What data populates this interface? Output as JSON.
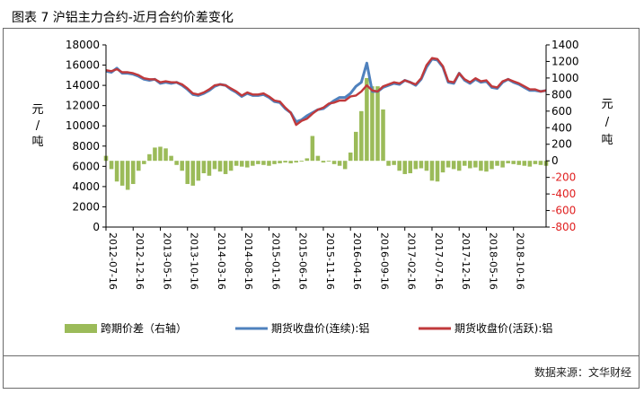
{
  "title": "图表 7 沪铝主力合约-近月合约价差变化",
  "source": "数据来源：文华财经",
  "chart_data": {
    "type": "line",
    "left_axis": {
      "range": [
        0,
        18000
      ],
      "ticks": [
        "0",
        "2000",
        "4000",
        "6000",
        "8000",
        "10000",
        "12000",
        "14000",
        "16000",
        "18000"
      ],
      "unit_label": [
        "元",
        "/",
        "吨"
      ]
    },
    "right_axis": {
      "range": [
        -800,
        1400
      ],
      "ticks": [
        "-800",
        "-600",
        "-400",
        "-200",
        "0",
        "200",
        "400",
        "600",
        "800",
        "1000",
        "1200",
        "1400"
      ],
      "unit_label": [
        "元",
        "/",
        "吨"
      ]
    },
    "x_ticks": [
      "2012-07-16",
      "2012-12-16",
      "2013-05-16",
      "2013-10-16",
      "2014-03-16",
      "2014-08-16",
      "2015-01-16",
      "2015-06-16",
      "2015-11-16",
      "2016-04-16",
      "2016-09-16",
      "2017-02-16",
      "2017-07-16",
      "2017-12-16",
      "2018-05-16",
      "2018-10-16"
    ],
    "x_positions": [
      0,
      5,
      10,
      15,
      20,
      25,
      30,
      35,
      40,
      45,
      50,
      55,
      60,
      65,
      70,
      75
    ],
    "x_range": [
      0,
      81
    ],
    "series": [
      {
        "name": "跨期价差（右轴）",
        "type": "bar",
        "axis": "right",
        "color": "#9bbb59",
        "x": [
          0,
          1,
          2,
          3,
          4,
          5,
          6,
          7,
          8,
          9,
          10,
          11,
          12,
          13,
          14,
          15,
          16,
          17,
          18,
          19,
          20,
          21,
          22,
          23,
          24,
          25,
          26,
          27,
          28,
          29,
          30,
          31,
          32,
          33,
          34,
          35,
          36,
          37,
          38,
          39,
          40,
          41,
          42,
          43,
          44,
          45,
          46,
          47,
          48,
          49,
          50,
          51,
          52,
          53,
          54,
          55,
          56,
          57,
          58,
          59,
          60,
          61,
          62,
          63,
          64,
          65,
          66,
          67,
          68,
          69,
          70,
          71,
          72,
          73,
          74,
          75,
          76,
          77,
          78,
          79,
          80,
          81
        ],
        "values": [
          60,
          -100,
          -250,
          -300,
          -350,
          -280,
          -120,
          -40,
          80,
          160,
          170,
          150,
          60,
          -50,
          -120,
          -280,
          -300,
          -240,
          -150,
          -180,
          -100,
          -130,
          -160,
          -120,
          -60,
          -70,
          -80,
          -60,
          -40,
          -50,
          -60,
          -40,
          -30,
          -20,
          -30,
          -20,
          -10,
          30,
          300,
          60,
          -20,
          -10,
          -40,
          -60,
          -100,
          100,
          350,
          600,
          1000,
          900,
          900,
          620,
          -60,
          -50,
          -120,
          -160,
          -150,
          -100,
          -90,
          -120,
          -240,
          -250,
          -140,
          -80,
          -100,
          -120,
          -60,
          -90,
          -80,
          -120,
          -130,
          -100,
          -60,
          -80,
          -30,
          -40,
          -50,
          -60,
          -70,
          -40,
          -50,
          -60
        ]
      },
      {
        "name": "期货收盘价(连续):铝",
        "type": "line",
        "axis": "left",
        "color": "#4f81bd",
        "x": [
          0,
          1,
          2,
          3,
          4,
          5,
          6,
          7,
          8,
          9,
          10,
          11,
          12,
          13,
          14,
          15,
          16,
          17,
          18,
          19,
          20,
          21,
          22,
          23,
          24,
          25,
          26,
          27,
          28,
          29,
          30,
          31,
          32,
          33,
          34,
          35,
          36,
          37,
          38,
          39,
          40,
          41,
          42,
          43,
          44,
          45,
          46,
          47,
          48,
          49,
          50,
          51,
          52,
          53,
          54,
          55,
          56,
          57,
          58,
          59,
          60,
          61,
          62,
          63,
          64,
          65,
          66,
          67,
          68,
          69,
          70,
          71,
          72,
          73,
          74,
          75,
          76,
          77,
          78,
          79,
          80,
          81
        ],
        "values": [
          15400,
          15300,
          15700,
          15200,
          15200,
          15100,
          14900,
          14600,
          14500,
          14600,
          14200,
          14300,
          14200,
          14300,
          14000,
          13600,
          13100,
          13000,
          13200,
          13500,
          13900,
          14100,
          14000,
          13600,
          13300,
          12900,
          13200,
          13000,
          13000,
          13100,
          12800,
          12400,
          12300,
          11700,
          11300,
          10400,
          10600,
          11000,
          11300,
          11600,
          11700,
          12100,
          12500,
          12800,
          12800,
          13200,
          13900,
          14300,
          16200,
          13400,
          13400,
          13800,
          14000,
          14200,
          14100,
          14500,
          14300,
          14000,
          14600,
          15800,
          16600,
          16500,
          15800,
          14300,
          14200,
          15200,
          14500,
          14200,
          14600,
          14300,
          14400,
          13800,
          13700,
          14300,
          14600,
          14300,
          14100,
          13800,
          13500,
          13500,
          13400,
          13500
        ]
      },
      {
        "name": "期货收盘价(活跃):铝",
        "type": "line",
        "axis": "left",
        "color": "#c0393b",
        "x": [
          0,
          1,
          2,
          3,
          4,
          5,
          6,
          7,
          8,
          9,
          10,
          11,
          12,
          13,
          14,
          15,
          16,
          17,
          18,
          19,
          20,
          21,
          22,
          23,
          24,
          25,
          26,
          27,
          28,
          29,
          30,
          31,
          32,
          33,
          34,
          35,
          36,
          37,
          38,
          39,
          40,
          41,
          42,
          43,
          44,
          45,
          46,
          47,
          48,
          49,
          50,
          51,
          52,
          53,
          54,
          55,
          56,
          57,
          58,
          59,
          60,
          61,
          62,
          63,
          64,
          65,
          66,
          67,
          68,
          69,
          70,
          71,
          72,
          73,
          74,
          75,
          76,
          77,
          78,
          79,
          80,
          81
        ],
        "values": [
          15500,
          15400,
          15600,
          15300,
          15300,
          15200,
          15000,
          14700,
          14600,
          14600,
          14300,
          14400,
          14300,
          14300,
          14100,
          13700,
          13200,
          13100,
          13300,
          13600,
          14000,
          14100,
          14000,
          13700,
          13400,
          13000,
          13300,
          13100,
          13100,
          13200,
          12900,
          12500,
          12400,
          11800,
          11300,
          10100,
          10500,
          10700,
          11200,
          11600,
          11800,
          12200,
          12300,
          12500,
          12500,
          12900,
          13000,
          13400,
          14000,
          13500,
          13400,
          13900,
          14100,
          14300,
          14200,
          14500,
          14300,
          14100,
          14700,
          16000,
          16700,
          16600,
          15900,
          14400,
          14300,
          15200,
          14600,
          14300,
          14700,
          14400,
          14500,
          13900,
          13800,
          14400,
          14600,
          14400,
          14200,
          13900,
          13600,
          13600,
          13400,
          13500
        ]
      }
    ],
    "legend": [
      "跨期价差（右轴）",
      "期货收盘价(连续):铝",
      "期货收盘价(活跃):铝"
    ],
    "legend_position": "bottom"
  }
}
